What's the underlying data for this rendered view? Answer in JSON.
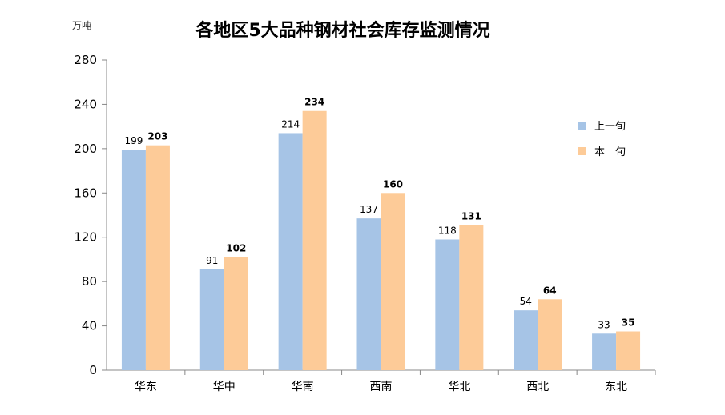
{
  "chart_data": {
    "type": "bar",
    "title": "各地区5大品种钢材社会库存监测情况",
    "unit": "万吨",
    "categories": [
      "华东",
      "华中",
      "华南",
      "西南",
      "华北",
      "西北",
      "东北"
    ],
    "series": [
      {
        "name": "上一旬",
        "color": "#A6C4E6",
        "values": [
          199,
          91,
          214,
          137,
          118,
          54,
          33
        ]
      },
      {
        "name": "本　旬",
        "color": "#FDCB98",
        "values": [
          203,
          102,
          234,
          160,
          131,
          64,
          35
        ]
      }
    ],
    "ylim": [
      0,
      280
    ],
    "yticks": [
      0,
      40,
      80,
      120,
      160,
      200,
      240,
      280
    ],
    "grid": false,
    "legend": "right"
  }
}
